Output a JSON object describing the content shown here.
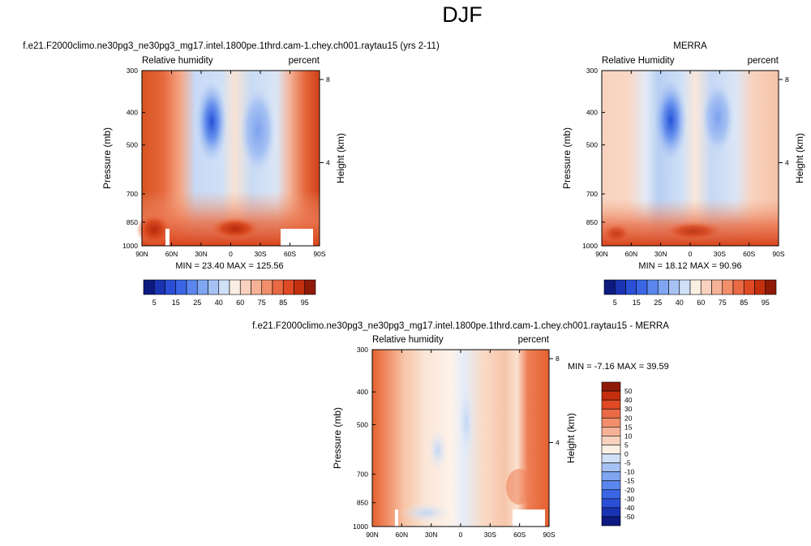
{
  "chart_data": {
    "type": "heatmap",
    "title": "DJF",
    "panels": [
      {
        "id": "model",
        "title": "f.e21.F2000climo.ne30pg3_ne30pg3_mg17.intel.1800pe.1thrd.cam-1.chey.ch001.raytau15 (yrs 2-11)",
        "left_label": "Relative humidity",
        "right_label": "percent",
        "ylabel": "Pressure (mb)",
        "y2label": "Height (km)",
        "xticks": [
          "90N",
          "60N",
          "30N",
          "0",
          "30S",
          "60S",
          "90S"
        ],
        "xvalues": [
          90,
          60,
          30,
          0,
          -30,
          -60,
          -90
        ],
        "yticks": [
          "300",
          "400",
          "500",
          "700",
          "850",
          "1000"
        ],
        "yvalues": [
          300,
          400,
          500,
          700,
          850,
          1000
        ],
        "y2ticks": [
          "8",
          "4"
        ],
        "y2values": [
          8,
          4
        ],
        "ylim": [
          1000,
          300
        ],
        "xlim": [
          90,
          -90
        ],
        "min_max": "MIN =  23.40   MAX = 125.56",
        "scale": "abs"
      },
      {
        "id": "merra",
        "title": "MERRA",
        "left_label": "Relative Humidity",
        "right_label": "percent",
        "ylabel": "Pressure (mb)",
        "y2label": "Height (km)",
        "xticks": [
          "90N",
          "60N",
          "30N",
          "0",
          "30S",
          "60S",
          "90S"
        ],
        "xvalues": [
          90,
          60,
          30,
          0,
          -30,
          -60,
          -90
        ],
        "yticks": [
          "300",
          "400",
          "500",
          "700",
          "850",
          "1000"
        ],
        "yvalues": [
          300,
          400,
          500,
          700,
          850,
          1000
        ],
        "y2ticks": [
          "8",
          "4"
        ],
        "y2values": [
          8,
          4
        ],
        "ylim": [
          1000,
          300
        ],
        "xlim": [
          90,
          -90
        ],
        "min_max": "MIN =  18.12   MAX =  90.96",
        "scale": "abs"
      },
      {
        "id": "diff",
        "title": "f.e21.F2000climo.ne30pg3_ne30pg3_mg17.intel.1800pe.1thrd.cam-1.chey.ch001.raytau15 - MERRA",
        "left_label": "Relative humidity",
        "right_label": "percent",
        "ylabel": "Pressure (mb)",
        "y2label": "Height (km)",
        "xticks": [
          "90N",
          "60N",
          "30N",
          "0",
          "30S",
          "60S",
          "90S"
        ],
        "xvalues": [
          90,
          60,
          30,
          0,
          -30,
          -60,
          -90
        ],
        "yticks": [
          "300",
          "400",
          "500",
          "700",
          "850",
          "1000"
        ],
        "yvalues": [
          300,
          400,
          500,
          700,
          850,
          1000
        ],
        "y2ticks": [
          "8",
          "4"
        ],
        "y2values": [
          8,
          4
        ],
        "ylim": [
          1000,
          300
        ],
        "xlim": [
          90,
          -90
        ],
        "min_max": "MIN = -7.16  MAX =  39.59",
        "scale": "diff"
      }
    ],
    "colorbar_abs": {
      "orientation": "horizontal",
      "levels": [
        5,
        10,
        15,
        20,
        25,
        30,
        40,
        50,
        60,
        70,
        75,
        80,
        85,
        90,
        95
      ],
      "labels": [
        "5",
        "15",
        "25",
        "40",
        "60",
        "75",
        "85",
        "95"
      ],
      "colors": [
        "#0d1a80",
        "#1a33b3",
        "#2a4fd6",
        "#3a66e6",
        "#5b86ee",
        "#80a6f2",
        "#a6c2f5",
        "#cfe0f7",
        "#fbeee3",
        "#f9d2bf",
        "#f6b296",
        "#f18f6b",
        "#e96a45",
        "#df4a24",
        "#c4300f",
        "#8f1a08"
      ]
    },
    "colorbar_diff": {
      "orientation": "vertical",
      "levels": [
        -50,
        -40,
        -30,
        -20,
        -15,
        -10,
        -5,
        0,
        5,
        10,
        15,
        20,
        30,
        40,
        50
      ],
      "labels": [
        "50",
        "40",
        "30",
        "20",
        "15",
        "10",
        "5",
        "0",
        "-5",
        "-10",
        "-15",
        "-20",
        "-30",
        "-40",
        "-50"
      ],
      "colors": [
        "#8f1a08",
        "#c4300f",
        "#df4a24",
        "#e96a45",
        "#f18f6b",
        "#f6b296",
        "#f9d2bf",
        "#fbeee3",
        "#cfe0f7",
        "#a6c2f5",
        "#80a6f2",
        "#5b86ee",
        "#3a66e6",
        "#2a4fd6",
        "#1a33b3",
        "#0d1a80"
      ]
    }
  }
}
